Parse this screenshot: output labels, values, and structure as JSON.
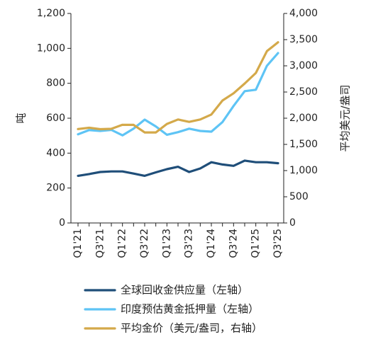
{
  "chart_data": {
    "type": "line",
    "categories": [
      "Q1'21",
      "Q2'21",
      "Q3'21",
      "Q4'21",
      "Q1'22",
      "Q2'22",
      "Q3'22",
      "Q4'22",
      "Q1'23",
      "Q2'23",
      "Q3'23",
      "Q4'23",
      "Q1'24",
      "Q2'24",
      "Q3'24",
      "Q4'24",
      "Q1'25",
      "Q2'25",
      "Q3'25"
    ],
    "x_tick_labels": [
      "Q1'21",
      "Q3'21",
      "Q1'22",
      "Q3'22",
      "Q1'23",
      "Q3'23",
      "Q1'24",
      "Q3'24",
      "Q1'25",
      "Q3'25"
    ],
    "y_left": {
      "label": "吨",
      "range": [
        0,
        1200
      ],
      "ticks": [
        "0",
        "200",
        "400",
        "600",
        "800",
        "1,000",
        "1,200"
      ]
    },
    "y_right": {
      "label": "平均美元/盎司",
      "range": [
        0,
        4000
      ],
      "ticks": [
        "0",
        "500",
        "1,000",
        "1,500",
        "2,000",
        "2,500",
        "3,000",
        "3,500",
        "4,000"
      ]
    },
    "grid": false,
    "legend_position": "bottom",
    "series": [
      {
        "name": "全球回收金供应量（左轴）",
        "axis": "left",
        "color": "#1f4e79",
        "values": [
          270,
          280,
          292,
          295,
          295,
          283,
          270,
          290,
          308,
          322,
          292,
          312,
          348,
          335,
          327,
          357,
          348,
          348,
          342
        ]
      },
      {
        "name": "印度预估黄金抵押量（左轴）",
        "axis": "left",
        "color": "#5ec4f5",
        "values": [
          508,
          532,
          527,
          533,
          502,
          540,
          592,
          553,
          505,
          520,
          540,
          527,
          523,
          578,
          670,
          755,
          763,
          900,
          973
        ]
      },
      {
        "name": "平均金价（美元/盎司，右轴）",
        "axis": "right",
        "color": "#d4a94a",
        "values": [
          1793,
          1817,
          1790,
          1797,
          1875,
          1873,
          1728,
          1728,
          1890,
          1975,
          1930,
          1975,
          2070,
          2338,
          2475,
          2662,
          2863,
          3280,
          3450
        ]
      }
    ]
  }
}
